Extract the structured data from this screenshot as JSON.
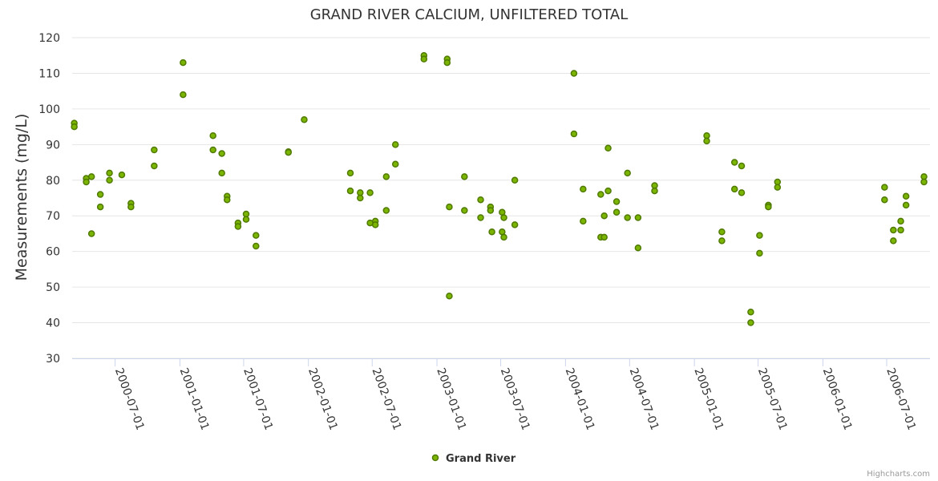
{
  "chart_data": {
    "type": "scatter",
    "title": "GRAND RIVER CALCIUM, UNFILTERED TOTAL",
    "ylabel": "Measurements (mg/L)",
    "xlabel": "",
    "ylim": [
      30,
      120
    ],
    "yticks": [
      "30",
      "40",
      "50",
      "60",
      "70",
      "80",
      "90",
      "100",
      "110",
      "120"
    ],
    "xlim": [
      "2000-03-01",
      "2006-11-01"
    ],
    "xticks": [
      "2000-07-01",
      "2001-01-01",
      "2001-07-01",
      "2002-01-01",
      "2002-07-01",
      "2003-01-01",
      "2003-07-01",
      "2004-01-01",
      "2004-07-01",
      "2005-01-01",
      "2005-07-01",
      "2006-01-01",
      "2006-07-01"
    ],
    "grid": true,
    "legend": "bottom-center",
    "series": [
      {
        "name": "Grand River",
        "color": "#7cb500",
        "marker_stroke": "#4f7a00",
        "points": [
          [
            "2000-03-07",
            96
          ],
          [
            "2000-03-07",
            95
          ],
          [
            "2000-04-10",
            80.5
          ],
          [
            "2000-04-10",
            79.5
          ],
          [
            "2000-04-25",
            81
          ],
          [
            "2000-04-25",
            65
          ],
          [
            "2000-05-20",
            76
          ],
          [
            "2000-05-20",
            72.5
          ],
          [
            "2000-06-15",
            82
          ],
          [
            "2000-06-15",
            80
          ],
          [
            "2000-07-20",
            81.5
          ],
          [
            "2000-08-15",
            73.5
          ],
          [
            "2000-08-15",
            72.5
          ],
          [
            "2000-10-20",
            88.5
          ],
          [
            "2000-10-20",
            84
          ],
          [
            "2001-01-10",
            113
          ],
          [
            "2001-01-10",
            104
          ],
          [
            "2001-04-05",
            92.5
          ],
          [
            "2001-04-05",
            88.5
          ],
          [
            "2001-04-30",
            87.5
          ],
          [
            "2001-04-30",
            82
          ],
          [
            "2001-05-15",
            75.5
          ],
          [
            "2001-05-15",
            74.5
          ],
          [
            "2001-06-15",
            68
          ],
          [
            "2001-06-15",
            67
          ],
          [
            "2001-07-08",
            70.5
          ],
          [
            "2001-07-08",
            69
          ],
          [
            "2001-08-05",
            64.5
          ],
          [
            "2001-08-05",
            61.5
          ],
          [
            "2001-11-05",
            88
          ],
          [
            "2001-11-05",
            87.8
          ],
          [
            "2001-12-20",
            97
          ],
          [
            "2002-04-30",
            82
          ],
          [
            "2002-04-30",
            77
          ],
          [
            "2002-05-28",
            76.5
          ],
          [
            "2002-05-28",
            75
          ],
          [
            "2002-06-25",
            76.5
          ],
          [
            "2002-06-25",
            68
          ],
          [
            "2002-07-10",
            68.5
          ],
          [
            "2002-07-10",
            67.5
          ],
          [
            "2002-08-10",
            81
          ],
          [
            "2002-08-10",
            71.5
          ],
          [
            "2002-09-05",
            90
          ],
          [
            "2002-09-05",
            84.5
          ],
          [
            "2002-11-25",
            115
          ],
          [
            "2002-11-25",
            114
          ],
          [
            "2003-01-30",
            114
          ],
          [
            "2003-01-30",
            113
          ],
          [
            "2003-02-05",
            72.5
          ],
          [
            "2003-02-05",
            47.5
          ],
          [
            "2003-03-20",
            81
          ],
          [
            "2003-03-20",
            71.5
          ],
          [
            "2003-05-05",
            74.5
          ],
          [
            "2003-05-05",
            69.5
          ],
          [
            "2003-06-02",
            72.5
          ],
          [
            "2003-06-02",
            71.5
          ],
          [
            "2003-06-06",
            65.5
          ],
          [
            "2003-07-05",
            71
          ],
          [
            "2003-07-05",
            65.5
          ],
          [
            "2003-07-10",
            69.5
          ],
          [
            "2003-07-10",
            64
          ],
          [
            "2003-08-10",
            80
          ],
          [
            "2003-08-10",
            67.5
          ],
          [
            "2004-01-25",
            110
          ],
          [
            "2004-01-25",
            93
          ],
          [
            "2004-02-20",
            77.5
          ],
          [
            "2004-02-20",
            68.5
          ],
          [
            "2004-04-10",
            76
          ],
          [
            "2004-04-10",
            64
          ],
          [
            "2004-04-20",
            70
          ],
          [
            "2004-04-20",
            64
          ],
          [
            "2004-05-01",
            89
          ],
          [
            "2004-05-01",
            77
          ],
          [
            "2004-05-25",
            74
          ],
          [
            "2004-05-25",
            71
          ],
          [
            "2004-06-25",
            82
          ],
          [
            "2004-06-25",
            69.5
          ],
          [
            "2004-07-25",
            69.5
          ],
          [
            "2004-07-25",
            61
          ],
          [
            "2004-09-10",
            78.5
          ],
          [
            "2004-09-10",
            77
          ],
          [
            "2005-02-05",
            92.5
          ],
          [
            "2005-02-05",
            91
          ],
          [
            "2005-03-20",
            65.5
          ],
          [
            "2005-03-20",
            63
          ],
          [
            "2005-04-25",
            85
          ],
          [
            "2005-04-25",
            77.5
          ],
          [
            "2005-05-15",
            84
          ],
          [
            "2005-05-15",
            76.5
          ],
          [
            "2005-06-10",
            43
          ],
          [
            "2005-06-10",
            40
          ],
          [
            "2005-07-05",
            64.5
          ],
          [
            "2005-07-05",
            59.5
          ],
          [
            "2005-07-30",
            73
          ],
          [
            "2005-07-30",
            72.5
          ],
          [
            "2005-08-25",
            79.5
          ],
          [
            "2005-08-25",
            78
          ],
          [
            "2006-06-25",
            78
          ],
          [
            "2006-06-25",
            74.5
          ],
          [
            "2006-07-20",
            66
          ],
          [
            "2006-07-20",
            63
          ],
          [
            "2006-08-10",
            68.5
          ],
          [
            "2006-08-10",
            66
          ],
          [
            "2006-08-25",
            75.5
          ],
          [
            "2006-08-25",
            73
          ],
          [
            "2006-10-15",
            81
          ],
          [
            "2006-10-15",
            79.5
          ]
        ]
      }
    ],
    "credits": "Highcharts.com"
  }
}
